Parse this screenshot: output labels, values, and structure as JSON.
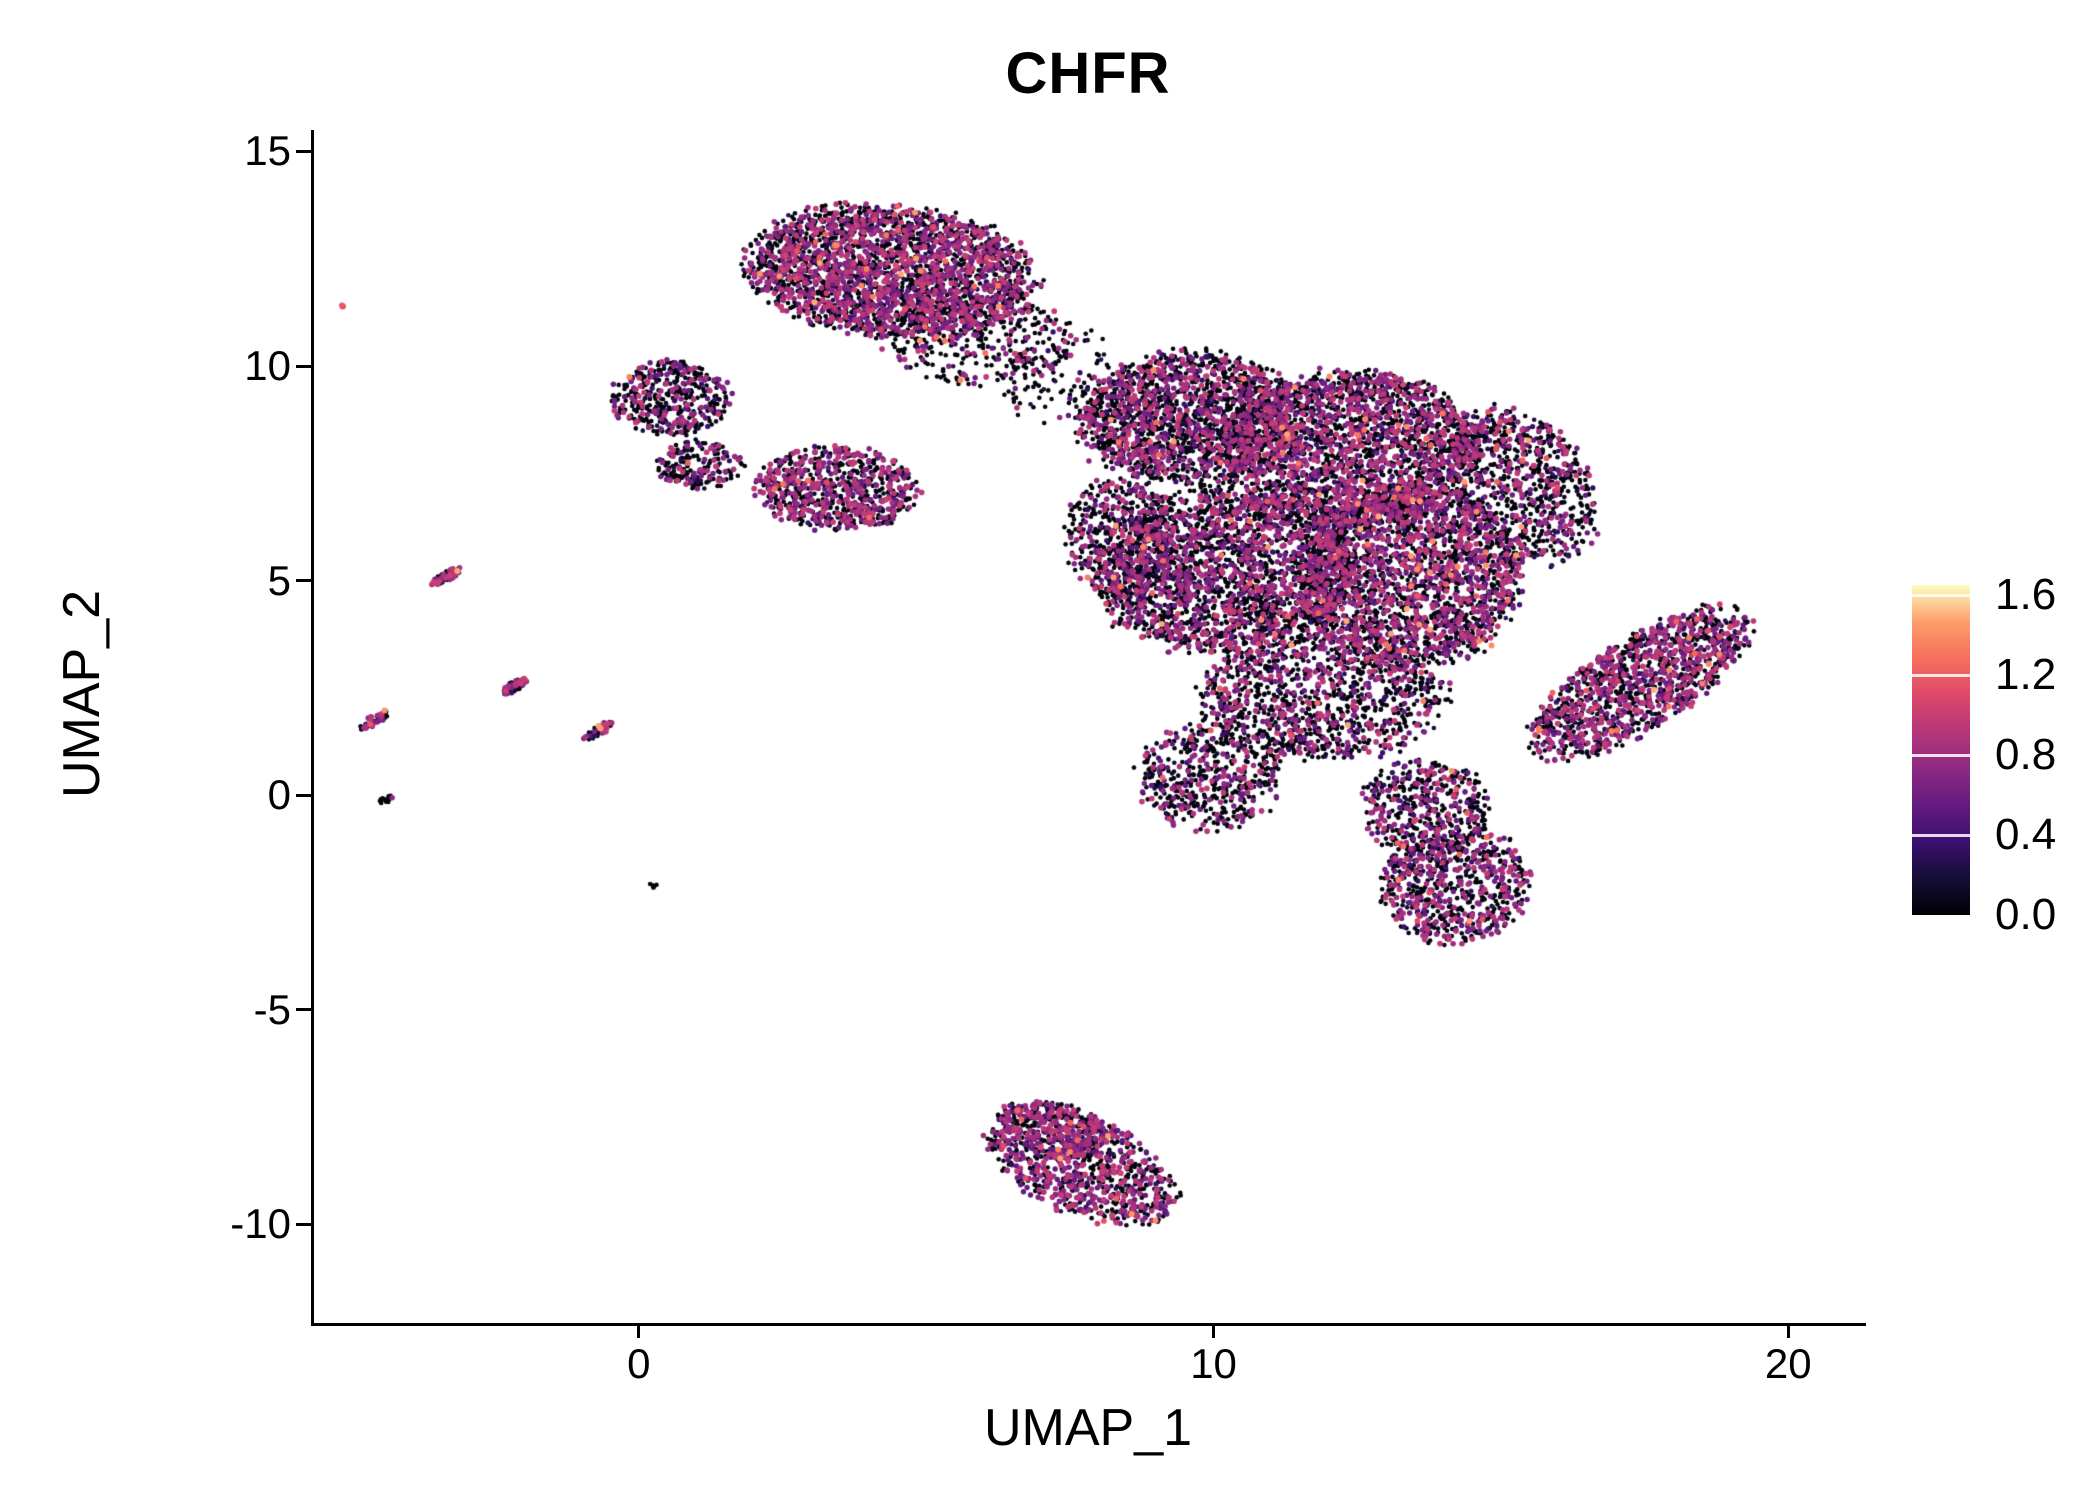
{
  "chart_data": {
    "type": "scatter",
    "title": "CHFR",
    "xlabel": "UMAP_1",
    "ylabel": "UMAP_2",
    "xlim": [
      -5.67,
      21.3
    ],
    "ylim": [
      -12.3,
      15.5
    ],
    "xticks": [
      0,
      10,
      20
    ],
    "xtick_labels": [
      "0",
      "10",
      "20"
    ],
    "yticks": [
      -10,
      -5,
      0,
      5,
      10,
      15
    ],
    "ytick_labels": [
      "-10",
      "-5",
      "0",
      "5",
      "10",
      "15"
    ],
    "grid": false,
    "legend_position": "right",
    "background": "#ffffff",
    "colorbar": {
      "vmin": 0.0,
      "vmax": 1.65,
      "ticks": [
        0.0,
        0.4,
        0.8,
        1.2,
        1.6
      ],
      "tick_labels": [
        "0.0",
        "0.4",
        "0.8",
        "1.2",
        "1.6"
      ],
      "colormap": "magma",
      "stops": [
        {
          "t": 0.0,
          "c": "#000004"
        },
        {
          "t": 0.11,
          "c": "#140e36"
        },
        {
          "t": 0.22,
          "c": "#3b0f70"
        },
        {
          "t": 0.33,
          "c": "#641a80"
        },
        {
          "t": 0.44,
          "c": "#8c2981"
        },
        {
          "t": 0.56,
          "c": "#b73779"
        },
        {
          "t": 0.67,
          "c": "#de4968"
        },
        {
          "t": 0.78,
          "c": "#f7705c"
        },
        {
          "t": 0.89,
          "c": "#fe9f6d"
        },
        {
          "t": 1.0,
          "c": "#fcfdbf"
        }
      ]
    },
    "seed": 42,
    "clusters": [
      {
        "id": "top-main",
        "cx": 4.4,
        "cy": 12.2,
        "rx": 2.45,
        "ry": 1.5,
        "rot": -8,
        "n": 2600,
        "p_color": 0.42,
        "p_hot": 0.012
      },
      {
        "id": "top-fringe",
        "cx": 5.9,
        "cy": 10.6,
        "rx": 1.6,
        "ry": 1.0,
        "rot": 0,
        "n": 280,
        "p_color": 0.18,
        "p_hot": 0.004
      },
      {
        "id": "upper-left-a",
        "cx": 0.55,
        "cy": 9.25,
        "rx": 1.0,
        "ry": 0.85,
        "rot": 0,
        "n": 430,
        "p_color": 0.3,
        "p_hot": 0.005
      },
      {
        "id": "upper-left-b",
        "cx": 1.05,
        "cy": 7.7,
        "rx": 0.75,
        "ry": 0.55,
        "rot": 0,
        "n": 190,
        "p_color": 0.3,
        "p_hot": 0.004
      },
      {
        "id": "mid-left",
        "cx": 3.45,
        "cy": 7.15,
        "rx": 1.35,
        "ry": 0.95,
        "rot": -5,
        "n": 760,
        "p_color": 0.45,
        "p_hot": 0.007
      },
      {
        "id": "bridge",
        "cx": 7.2,
        "cy": 10.0,
        "rx": 0.95,
        "ry": 1.4,
        "rot": 0,
        "n": 130,
        "p_color": 0.15,
        "p_hot": 0.003
      },
      {
        "id": "scatter-mid",
        "cx": 8.3,
        "cy": 8.7,
        "rx": 1.0,
        "ry": 1.1,
        "rot": 0,
        "n": 90,
        "p_color": 0.2,
        "p_hot": 0.005
      },
      {
        "id": "central-nw",
        "cx": 9.6,
        "cy": 8.8,
        "rx": 1.85,
        "ry": 1.5,
        "rot": 0,
        "n": 1700,
        "p_color": 0.3,
        "p_hot": 0.01
      },
      {
        "id": "central-ne",
        "cx": 12.4,
        "cy": 8.1,
        "rx": 2.2,
        "ry": 1.75,
        "rot": 0,
        "n": 2400,
        "p_color": 0.34,
        "p_hot": 0.012
      },
      {
        "id": "central-w",
        "cx": 10.2,
        "cy": 5.2,
        "rx": 2.25,
        "ry": 1.9,
        "rot": 0,
        "n": 2400,
        "p_color": 0.33,
        "p_hot": 0.01
      },
      {
        "id": "central-wlobe",
        "cx": 8.4,
        "cy": 6.0,
        "rx": 1.0,
        "ry": 1.4,
        "rot": 0,
        "n": 450,
        "p_color": 0.32,
        "p_hot": 0.008
      },
      {
        "id": "central-e",
        "cx": 13.4,
        "cy": 5.1,
        "rx": 1.9,
        "ry": 2.1,
        "rot": 0,
        "n": 2200,
        "p_color": 0.4,
        "p_hot": 0.015
      },
      {
        "id": "central-arm",
        "cx": 15.4,
        "cy": 7.2,
        "rx": 1.15,
        "ry": 1.85,
        "rot": 20,
        "n": 800,
        "p_color": 0.3,
        "p_hot": 0.012
      },
      {
        "id": "central-s",
        "cx": 11.9,
        "cy": 2.3,
        "rx": 2.1,
        "ry": 1.45,
        "rot": 0,
        "n": 1100,
        "p_color": 0.28,
        "p_hot": 0.008
      },
      {
        "id": "central-sw",
        "cx": 9.9,
        "cy": 0.4,
        "rx": 1.25,
        "ry": 1.2,
        "rot": 0,
        "n": 500,
        "p_color": 0.28,
        "p_hot": 0.006
      },
      {
        "id": "central-se",
        "cx": 13.7,
        "cy": -0.3,
        "rx": 1.1,
        "ry": 1.1,
        "rot": 0,
        "n": 450,
        "p_color": 0.3,
        "p_hot": 0.008
      },
      {
        "id": "lower-right",
        "cx": 14.2,
        "cy": -2.1,
        "rx": 1.25,
        "ry": 1.35,
        "rot": -20,
        "n": 750,
        "p_color": 0.35,
        "p_hot": 0.012
      },
      {
        "id": "right-band",
        "cx": 17.4,
        "cy": 2.6,
        "rx": 2.35,
        "ry": 0.95,
        "rot": 42,
        "n": 1250,
        "p_color": 0.42,
        "p_hot": 0.02
      },
      {
        "id": "bottom-a",
        "cx": 7.7,
        "cy": -8.6,
        "rx": 1.85,
        "ry": 1.05,
        "rot": -36,
        "n": 900,
        "p_color": 0.45,
        "p_hot": 0.02
      },
      {
        "id": "bottom-b",
        "cx": 7.2,
        "cy": -7.8,
        "rx": 1.0,
        "ry": 0.6,
        "rot": -20,
        "n": 260,
        "p_color": 0.4,
        "p_hot": 0.01
      },
      {
        "id": "streak-a",
        "cx": -3.35,
        "cy": 5.1,
        "rx": 0.3,
        "ry": 0.1,
        "rot": 38,
        "n": 70,
        "p_color": 0.5,
        "p_hot": 0.06
      },
      {
        "id": "streak-b",
        "cx": -4.6,
        "cy": 1.75,
        "rx": 0.32,
        "ry": 0.1,
        "rot": 38,
        "n": 60,
        "p_color": 0.35,
        "p_hot": 0.02
      },
      {
        "id": "streak-c",
        "cx": -2.15,
        "cy": 2.55,
        "rx": 0.26,
        "ry": 0.1,
        "rot": 38,
        "n": 50,
        "p_color": 0.4,
        "p_hot": 0.03
      },
      {
        "id": "streak-d",
        "cx": -0.7,
        "cy": 1.5,
        "rx": 0.3,
        "ry": 0.1,
        "rot": 38,
        "n": 55,
        "p_color": 0.35,
        "p_hot": 0.02
      },
      {
        "id": "dot-e",
        "cx": -4.4,
        "cy": -0.1,
        "rx": 0.13,
        "ry": 0.08,
        "rot": 38,
        "n": 16,
        "p_color": 0.08,
        "p_hot": 0.0
      },
      {
        "id": "dot-f",
        "cx": 0.25,
        "cy": -2.1,
        "rx": 0.08,
        "ry": 0.05,
        "rot": 0,
        "n": 6,
        "p_color": 0.1,
        "p_hot": 0.0
      },
      {
        "id": "dot-g",
        "cx": -5.15,
        "cy": 11.4,
        "rx": 0.06,
        "ry": 0.05,
        "rot": 0,
        "n": 3,
        "p_color": 1.0,
        "p_hot": 0.6
      }
    ]
  }
}
